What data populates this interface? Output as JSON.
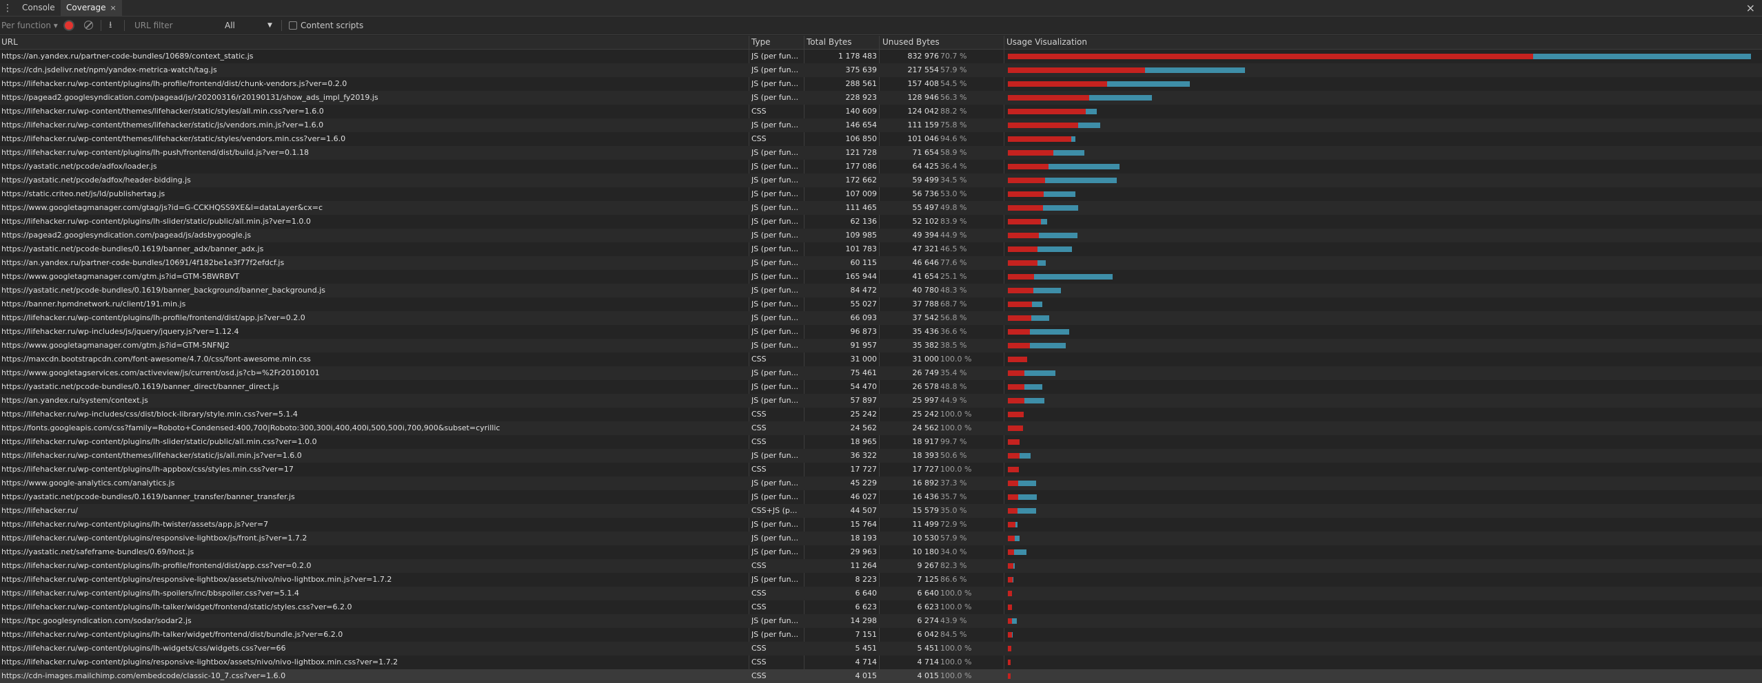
{
  "tabs": {
    "console": "Console",
    "coverage": "Coverage",
    "close_glyph": "×"
  },
  "toolbar": {
    "mode": "Per function ▾",
    "filter_placeholder": "URL filter",
    "type_filter": "All",
    "content_scripts": "Content scripts"
  },
  "columns": {
    "url": "URL",
    "type": "Type",
    "total": "Total Bytes",
    "unused": "Unused Bytes",
    "viz": "Usage Visualization"
  },
  "rows": [
    {
      "url": "https://an.yandex.ru/partner-code-bundles/10689/context_static.js",
      "type": "JS (per fun...",
      "total": "1 178 483",
      "unused": "832 976",
      "pct": "70.7 %"
    },
    {
      "url": "https://cdn.jsdelivr.net/npm/yandex-metrica-watch/tag.js",
      "type": "JS (per fun...",
      "total": "375 639",
      "unused": "217 554",
      "pct": "57.9 %"
    },
    {
      "url": "https://lifehacker.ru/wp-content/plugins/lh-profile/frontend/dist/chunk-vendors.js?ver=0.2.0",
      "type": "JS (per fun...",
      "total": "288 561",
      "unused": "157 408",
      "pct": "54.5 %"
    },
    {
      "url": "https://pagead2.googlesyndication.com/pagead/js/r20200316/r20190131/show_ads_impl_fy2019.js",
      "type": "JS (per fun...",
      "total": "228 923",
      "unused": "128 946",
      "pct": "56.3 %"
    },
    {
      "url": "https://lifehacker.ru/wp-content/themes/lifehacker/static/styles/all.min.css?ver=1.6.0",
      "type": "CSS",
      "total": "140 609",
      "unused": "124 042",
      "pct": "88.2 %"
    },
    {
      "url": "https://lifehacker.ru/wp-content/themes/lifehacker/static/js/vendors.min.js?ver=1.6.0",
      "type": "JS (per fun...",
      "total": "146 654",
      "unused": "111 159",
      "pct": "75.8 %"
    },
    {
      "url": "https://lifehacker.ru/wp-content/themes/lifehacker/static/styles/vendors.min.css?ver=1.6.0",
      "type": "CSS",
      "total": "106 850",
      "unused": "101 046",
      "pct": "94.6 %"
    },
    {
      "url": "https://lifehacker.ru/wp-content/plugins/lh-push/frontend/dist/build.js?ver=0.1.18",
      "type": "JS (per fun...",
      "total": "121 728",
      "unused": "71 654",
      "pct": "58.9 %"
    },
    {
      "url": "https://yastatic.net/pcode/adfox/loader.js",
      "type": "JS (per fun...",
      "total": "177 086",
      "unused": "64 425",
      "pct": "36.4 %"
    },
    {
      "url": "https://yastatic.net/pcode/adfox/header-bidding.js",
      "type": "JS (per fun...",
      "total": "172 662",
      "unused": "59 499",
      "pct": "34.5 %"
    },
    {
      "url": "https://static.criteo.net/js/ld/publishertag.js",
      "type": "JS (per fun...",
      "total": "107 009",
      "unused": "56 736",
      "pct": "53.0 %"
    },
    {
      "url": "https://www.googletagmanager.com/gtag/js?id=G-CCKHQSS9XE&l=dataLayer&cx=c",
      "type": "JS (per fun...",
      "total": "111 465",
      "unused": "55 497",
      "pct": "49.8 %"
    },
    {
      "url": "https://lifehacker.ru/wp-content/plugins/lh-slider/static/public/all.min.js?ver=1.0.0",
      "type": "JS (per fun...",
      "total": "62 136",
      "unused": "52 102",
      "pct": "83.9 %"
    },
    {
      "url": "https://pagead2.googlesyndication.com/pagead/js/adsbygoogle.js",
      "type": "JS (per fun...",
      "total": "109 985",
      "unused": "49 394",
      "pct": "44.9 %"
    },
    {
      "url": "https://yastatic.net/pcode-bundles/0.1619/banner_adx/banner_adx.js",
      "type": "JS (per fun...",
      "total": "101 783",
      "unused": "47 321",
      "pct": "46.5 %"
    },
    {
      "url": "https://an.yandex.ru/partner-code-bundles/10691/4f182be1e3f77f2efdcf.js",
      "type": "JS (per fun...",
      "total": "60 115",
      "unused": "46 646",
      "pct": "77.6 %"
    },
    {
      "url": "https://www.googletagmanager.com/gtm.js?id=GTM-5BWRBVT",
      "type": "JS (per fun...",
      "total": "165 944",
      "unused": "41 654",
      "pct": "25.1 %"
    },
    {
      "url": "https://yastatic.net/pcode-bundles/0.1619/banner_background/banner_background.js",
      "type": "JS (per fun...",
      "total": "84 472",
      "unused": "40 780",
      "pct": "48.3 %"
    },
    {
      "url": "https://banner.hpmdnetwork.ru/client/191.min.js",
      "type": "JS (per fun...",
      "total": "55 027",
      "unused": "37 788",
      "pct": "68.7 %"
    },
    {
      "url": "https://lifehacker.ru/wp-content/plugins/lh-profile/frontend/dist/app.js?ver=0.2.0",
      "type": "JS (per fun...",
      "total": "66 093",
      "unused": "37 542",
      "pct": "56.8 %"
    },
    {
      "url": "https://lifehacker.ru/wp-includes/js/jquery/jquery.js?ver=1.12.4",
      "type": "JS (per fun...",
      "total": "96 873",
      "unused": "35 436",
      "pct": "36.6 %"
    },
    {
      "url": "https://www.googletagmanager.com/gtm.js?id=GTM-5NFNJ2",
      "type": "JS (per fun...",
      "total": "91 957",
      "unused": "35 382",
      "pct": "38.5 %"
    },
    {
      "url": "https://maxcdn.bootstrapcdn.com/font-awesome/4.7.0/css/font-awesome.min.css",
      "type": "CSS",
      "total": "31 000",
      "unused": "31 000",
      "pct": "100.0 %"
    },
    {
      "url": "https://www.googletagservices.com/activeview/js/current/osd.js?cb=%2Fr20100101",
      "type": "JS (per fun...",
      "total": "75 461",
      "unused": "26 749",
      "pct": "35.4 %"
    },
    {
      "url": "https://yastatic.net/pcode-bundles/0.1619/banner_direct/banner_direct.js",
      "type": "JS (per fun...",
      "total": "54 470",
      "unused": "26 578",
      "pct": "48.8 %"
    },
    {
      "url": "https://an.yandex.ru/system/context.js",
      "type": "JS (per fun...",
      "total": "57 897",
      "unused": "25 997",
      "pct": "44.9 %"
    },
    {
      "url": "https://lifehacker.ru/wp-includes/css/dist/block-library/style.min.css?ver=5.1.4",
      "type": "CSS",
      "total": "25 242",
      "unused": "25 242",
      "pct": "100.0 %"
    },
    {
      "url": "https://fonts.googleapis.com/css?family=Roboto+Condensed:400,700|Roboto:300,300i,400,400i,500,500i,700,900&subset=cyrillic",
      "type": "CSS",
      "total": "24 562",
      "unused": "24 562",
      "pct": "100.0 %"
    },
    {
      "url": "https://lifehacker.ru/wp-content/plugins/lh-slider/static/public/all.min.css?ver=1.0.0",
      "type": "CSS",
      "total": "18 965",
      "unused": "18 917",
      "pct": "99.7 %"
    },
    {
      "url": "https://lifehacker.ru/wp-content/themes/lifehacker/static/js/all.min.js?ver=1.6.0",
      "type": "JS (per fun...",
      "total": "36 322",
      "unused": "18 393",
      "pct": "50.6 %"
    },
    {
      "url": "https://lifehacker.ru/wp-content/plugins/lh-appbox/css/styles.min.css?ver=17",
      "type": "CSS",
      "total": "17 727",
      "unused": "17 727",
      "pct": "100.0 %"
    },
    {
      "url": "https://www.google-analytics.com/analytics.js",
      "type": "JS (per fun...",
      "total": "45 229",
      "unused": "16 892",
      "pct": "37.3 %"
    },
    {
      "url": "https://yastatic.net/pcode-bundles/0.1619/banner_transfer/banner_transfer.js",
      "type": "JS (per fun...",
      "total": "46 027",
      "unused": "16 436",
      "pct": "35.7 %"
    },
    {
      "url": "https://lifehacker.ru/",
      "type": "CSS+JS (p...",
      "total": "44 507",
      "unused": "15 579",
      "pct": "35.0 %"
    },
    {
      "url": "https://lifehacker.ru/wp-content/plugins/lh-twister/assets/app.js?ver=7",
      "type": "JS (per fun...",
      "total": "15 764",
      "unused": "11 499",
      "pct": "72.9 %"
    },
    {
      "url": "https://lifehacker.ru/wp-content/plugins/responsive-lightbox/js/front.js?ver=1.7.2",
      "type": "JS (per fun...",
      "total": "18 193",
      "unused": "10 530",
      "pct": "57.9 %"
    },
    {
      "url": "https://yastatic.net/safeframe-bundles/0.69/host.js",
      "type": "JS (per fun...",
      "total": "29 963",
      "unused": "10 180",
      "pct": "34.0 %"
    },
    {
      "url": "https://lifehacker.ru/wp-content/plugins/lh-profile/frontend/dist/app.css?ver=0.2.0",
      "type": "CSS",
      "total": "11 264",
      "unused": "9 267",
      "pct": "82.3 %"
    },
    {
      "url": "https://lifehacker.ru/wp-content/plugins/responsive-lightbox/assets/nivo/nivo-lightbox.min.js?ver=1.7.2",
      "type": "JS (per fun...",
      "total": "8 223",
      "unused": "7 125",
      "pct": "86.6 %"
    },
    {
      "url": "https://lifehacker.ru/wp-content/plugins/lh-spoilers/inc/bbspoiler.css?ver=5.1.4",
      "type": "CSS",
      "total": "6 640",
      "unused": "6 640",
      "pct": "100.0 %"
    },
    {
      "url": "https://lifehacker.ru/wp-content/plugins/lh-talker/widget/frontend/static/styles.css?ver=6.2.0",
      "type": "CSS",
      "total": "6 623",
      "unused": "6 623",
      "pct": "100.0 %"
    },
    {
      "url": "https://tpc.googlesyndication.com/sodar/sodar2.js",
      "type": "JS (per fun...",
      "total": "14 298",
      "unused": "6 274",
      "pct": "43.9 %"
    },
    {
      "url": "https://lifehacker.ru/wp-content/plugins/lh-talker/widget/frontend/dist/bundle.js?ver=6.2.0",
      "type": "JS (per fun...",
      "total": "7 151",
      "unused": "6 042",
      "pct": "84.5 %"
    },
    {
      "url": "https://lifehacker.ru/wp-content/plugins/lh-widgets/css/widgets.css?ver=66",
      "type": "CSS",
      "total": "5 451",
      "unused": "5 451",
      "pct": "100.0 %"
    },
    {
      "url": "https://lifehacker.ru/wp-content/plugins/responsive-lightbox/assets/nivo/nivo-lightbox.min.css?ver=1.7.2",
      "type": "CSS",
      "total": "4 714",
      "unused": "4 714",
      "pct": "100.0 %"
    },
    {
      "url": "https://cdn-images.mailchimp.com/embedcode/classic-10_7.css?ver=1.6.0",
      "type": "CSS",
      "total": "4 015",
      "unused": "4 015",
      "pct": "100.0 %"
    }
  ]
}
